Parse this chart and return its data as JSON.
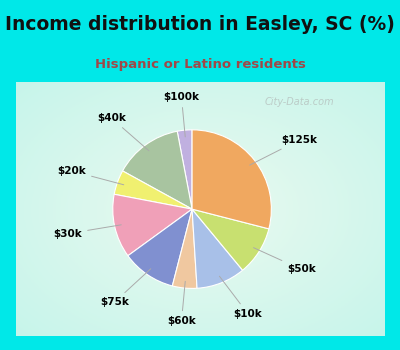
{
  "title": "Income distribution in Easley, SC (%)",
  "subtitle": "Hispanic or Latino residents",
  "labels": [
    "$100k",
    "$40k",
    "$20k",
    "$30k",
    "$75k",
    "$60k",
    "$10k",
    "$50k",
    "$125k"
  ],
  "sizes": [
    3,
    14,
    5,
    13,
    11,
    5,
    10,
    10,
    29
  ],
  "colors": [
    "#c0b0e0",
    "#a8c4a0",
    "#f0f070",
    "#f0a0b8",
    "#8090d0",
    "#f0c8a0",
    "#a8c0e8",
    "#c8e070",
    "#f0a860"
  ],
  "bg_top": "#00e8e8",
  "bg_chart_top": "#e0f5ec",
  "bg_chart_bottom": "#c8f0ec",
  "title_color": "#111111",
  "subtitle_color": "#a04848",
  "watermark_text": "City-Data.com",
  "label_fontsize": 7.5,
  "title_fontsize": 13.5,
  "subtitle_fontsize": 9.5,
  "startangle": 90
}
